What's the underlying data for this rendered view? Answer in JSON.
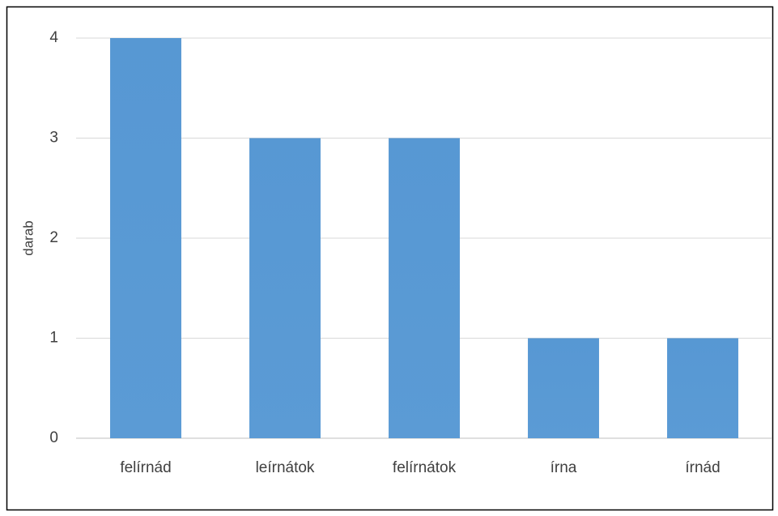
{
  "chart_data": {
    "type": "bar",
    "y_label": "darab",
    "categories": [
      "felírnád",
      "leírnátok",
      "felírnátok",
      "írna",
      "írnád"
    ],
    "values": [
      4,
      3,
      3,
      1,
      1
    ],
    "color": "#5b9bd5",
    "ylim": [
      0,
      4
    ],
    "yticks": [
      0,
      1,
      2,
      3,
      4
    ],
    "grid": true
  }
}
